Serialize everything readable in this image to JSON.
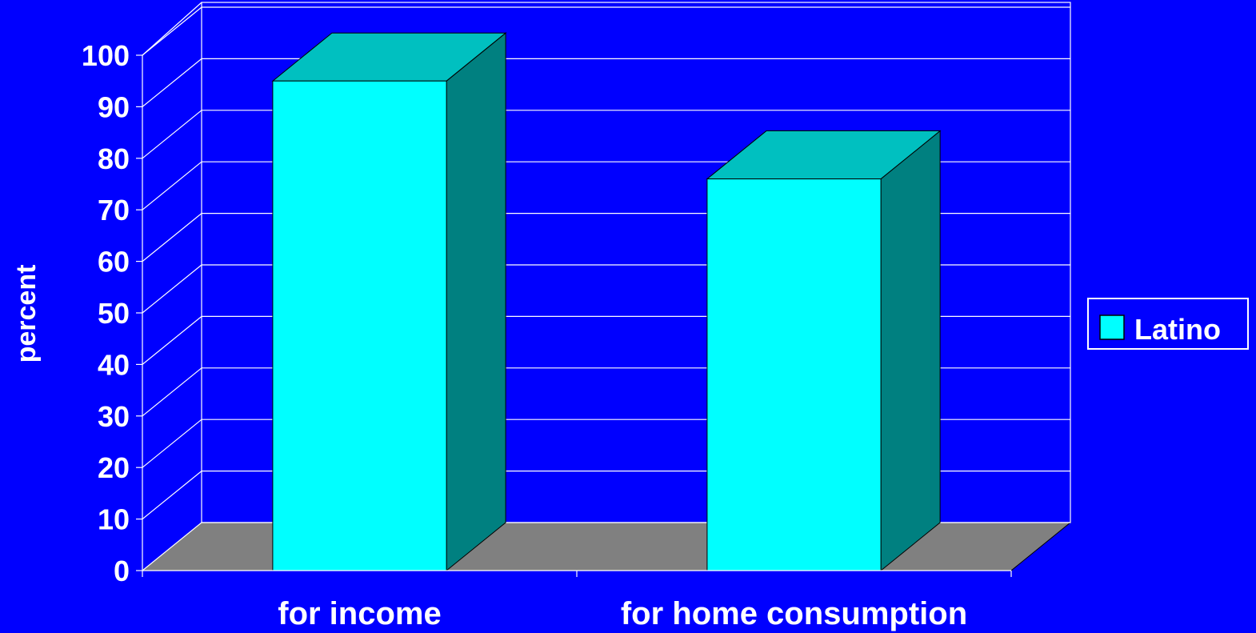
{
  "chart_data": {
    "type": "bar",
    "ylabel": "percent",
    "categories": [
      "for income",
      "for home consumption"
    ],
    "series": [
      {
        "name": "Latino",
        "values": [
          95,
          76
        ],
        "color": "#00ffff"
      }
    ],
    "ylim": [
      0,
      100
    ],
    "yticks": [
      "0",
      "10",
      "20",
      "30",
      "40",
      "50",
      "60",
      "70",
      "80",
      "90",
      "100"
    ],
    "grid": true,
    "legend_position": "right",
    "style": "3d",
    "colors": {
      "background": "#0000ff",
      "bar_front": "#00ffff",
      "bar_top": "#00c0c0",
      "bar_side": "#008080",
      "floor": "#808080",
      "lines": "#ffffff",
      "text": "#ffffff"
    }
  }
}
